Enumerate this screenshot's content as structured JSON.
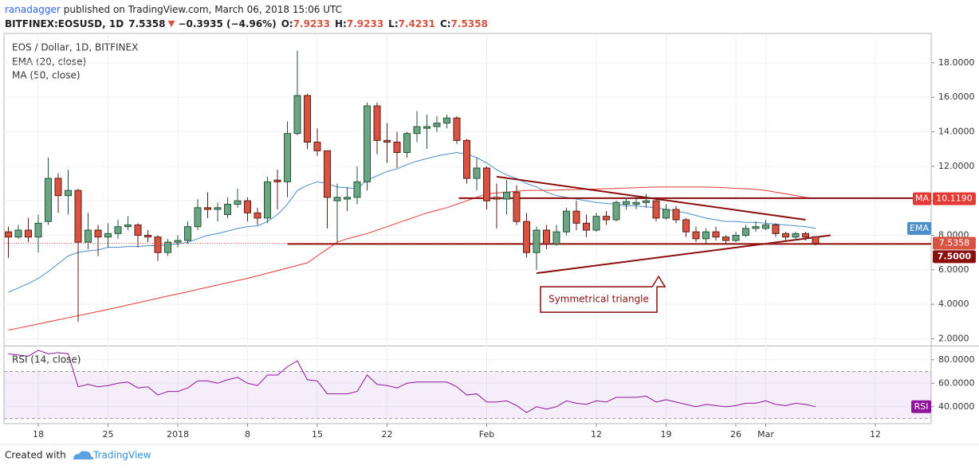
{
  "header": {
    "author": "ranadagger",
    "published": "published on TradingView.com, March 06, 2018 15:06 UTC",
    "symbol": "BITFINEX:EOSUSD, 1D",
    "last": "7.5358",
    "change": "−0.3935 (−4.96%)",
    "ohlc": [
      [
        "O:",
        "7.9233"
      ],
      [
        "H:",
        "7.9233"
      ],
      [
        "L:",
        "7.4231"
      ],
      [
        "C:",
        "7.5358"
      ]
    ]
  },
  "footer": {
    "created": "Created with",
    "brand": "TradingView"
  },
  "chart_data": {
    "type": "candlestick",
    "title": "EOS / Dollar, 1D, BITFINEX",
    "categories": [
      null,
      null,
      null,
      "18",
      null,
      null,
      null,
      null,
      null,
      null,
      "25",
      null,
      null,
      null,
      null,
      null,
      null,
      "2018",
      null,
      null,
      null,
      null,
      null,
      null,
      "8",
      null,
      null,
      null,
      null,
      null,
      null,
      "15",
      null,
      null,
      null,
      null,
      null,
      null,
      "22",
      null,
      null,
      null,
      null,
      null,
      null,
      null,
      null,
      null,
      "Feb",
      null,
      null,
      null,
      null,
      null,
      null,
      null,
      null,
      null,
      null,
      "12",
      null,
      null,
      null,
      null,
      null,
      null,
      "19",
      null,
      null,
      null,
      null,
      null,
      null,
      "26",
      null,
      null,
      "Mar",
      null,
      null,
      null,
      null,
      null,
      null,
      null,
      null,
      null,
      null,
      "12",
      null,
      null,
      null,
      null,
      null
    ],
    "open": [
      8.2,
      7.9,
      8.3,
      7.9,
      8.8,
      11.3,
      10.3,
      10.6,
      7.6,
      8.3,
      7.9,
      8.1,
      8.5,
      8.6,
      8.0,
      7.9,
      7.0,
      7.6,
      7.7,
      8.5,
      9.6,
      9.5,
      9.2,
      9.8,
      10.0,
      9.3,
      9.0,
      11.2,
      11.1,
      13.9,
      16.1,
      13.4,
      12.9,
      10.0,
      10.1,
      10.2,
      11.1,
      15.5,
      13.5,
      13.4,
      12.8,
      13.9,
      14.2,
      14.3,
      14.5,
      14.8,
      13.5,
      11.3,
      11.9,
      10.2,
      10.1,
      10.5,
      8.8,
      7.0,
      8.3,
      7.5,
      8.2,
      9.4,
      8.7,
      8.3,
      9.1,
      8.9,
      9.8,
      9.8,
      9.9,
      10.0,
      9.0,
      9.5,
      8.9,
      8.2,
      7.8,
      8.2,
      7.9,
      7.7,
      8.0,
      8.4,
      8.4,
      8.6,
      8.1,
      7.9,
      8.1,
      7.9233,
      null,
      null,
      null,
      null,
      null,
      null,
      null,
      null,
      null,
      null,
      null
    ],
    "high": [
      8.5,
      8.6,
      9.0,
      9.2,
      12.5,
      11.6,
      11.8,
      10.7,
      9.3,
      8.6,
      8.7,
      8.9,
      9.1,
      8.7,
      8.3,
      8.0,
      7.8,
      8.0,
      8.8,
      10.1,
      10.5,
      9.9,
      10.2,
      10.7,
      10.2,
      9.6,
      11.4,
      11.8,
      14.6,
      18.7,
      16.2,
      14.2,
      12.9,
      11.0,
      10.8,
      12.0,
      15.7,
      15.7,
      14.5,
      14.0,
      14.0,
      15.2,
      15.0,
      14.9,
      15.0,
      14.9,
      13.6,
      12.5,
      12.0,
      11.0,
      11.2,
      10.9,
      9.3,
      8.5,
      8.6,
      8.6,
      9.6,
      10.0,
      9.2,
      9.3,
      9.4,
      10.0,
      10.2,
      10.3,
      10.4,
      10.2,
      9.8,
      9.7,
      9.0,
      8.5,
      8.4,
      8.5,
      8.0,
      8.2,
      8.6,
      8.8,
      8.9,
      8.7,
      8.2,
      8.2,
      8.2,
      7.9233,
      null,
      null,
      null,
      null,
      null,
      null,
      null,
      null,
      null,
      null,
      null
    ],
    "low": [
      6.7,
      7.8,
      7.6,
      7.0,
      8.6,
      9.3,
      9.2,
      3.0,
      7.2,
      6.8,
      7.3,
      7.8,
      8.3,
      7.3,
      7.6,
      6.5,
      6.8,
      7.3,
      7.5,
      8.3,
      9.0,
      8.8,
      9.0,
      9.6,
      8.8,
      8.6,
      8.7,
      9.5,
      10.2,
      13.8,
      13.0,
      12.6,
      8.4,
      7.6,
      9.4,
      9.8,
      10.6,
      12.7,
      12.2,
      11.9,
      12.5,
      13.4,
      13.0,
      14.0,
      14.2,
      13.3,
      11.0,
      10.6,
      9.5,
      8.4,
      9.2,
      8.6,
      6.7,
      6.0,
      7.2,
      7.4,
      8.0,
      8.3,
      7.9,
      8.2,
      8.6,
      8.8,
      9.5,
      9.5,
      9.6,
      8.8,
      8.9,
      8.7,
      7.9,
      7.6,
      7.5,
      7.7,
      7.5,
      7.6,
      7.9,
      8.2,
      8.3,
      7.9,
      7.7,
      7.7,
      7.7,
      7.4231,
      null,
      null,
      null,
      null,
      null,
      null,
      null,
      null,
      null,
      null,
      null
    ],
    "close": [
      7.9,
      8.3,
      7.9,
      8.7,
      11.3,
      10.3,
      10.6,
      7.6,
      8.3,
      7.9,
      8.1,
      8.5,
      8.6,
      8.0,
      7.9,
      7.0,
      7.6,
      7.7,
      8.5,
      9.6,
      9.5,
      9.6,
      9.8,
      10.0,
      9.3,
      9.0,
      11.1,
      11.1,
      13.9,
      16.1,
      13.4,
      12.9,
      10.2,
      10.2,
      10.2,
      11.1,
      15.5,
      13.5,
      13.4,
      12.8,
      13.9,
      14.3,
      14.3,
      14.5,
      14.8,
      13.5,
      11.3,
      11.9,
      10.0,
      10.1,
      10.5,
      8.8,
      7.0,
      8.3,
      7.5,
      8.2,
      9.4,
      8.7,
      8.3,
      9.1,
      8.9,
      9.9,
      9.95,
      9.9,
      10.0,
      9.0,
      9.5,
      8.9,
      8.2,
      7.8,
      8.2,
      7.9,
      7.7,
      8.0,
      8.4,
      8.5,
      8.6,
      8.1,
      7.9,
      8.1,
      7.9,
      7.5358,
      null,
      null,
      null,
      null,
      null,
      null,
      null,
      null,
      null,
      null,
      null
    ],
    "up_color": "#6ba583",
    "up_border": "#225437",
    "down_color": "#d75442",
    "down_border": "#5b1a13",
    "close_label": "7.5358",
    "series": [
      {
        "name": "EMA (20, close)",
        "tag": "EMA",
        "color": "#4a8ecb",
        "values": [
          4.7,
          4.95,
          5.2,
          5.5,
          5.9,
          6.35,
          6.8,
          7.0,
          7.1,
          7.15,
          7.3,
          7.3,
          7.35,
          7.35,
          7.4,
          7.4,
          7.45,
          7.5,
          7.6,
          7.8,
          8.0,
          8.1,
          8.25,
          8.4,
          8.5,
          8.55,
          8.8,
          9.2,
          9.8,
          10.6,
          10.9,
          11.1,
          11.0,
          10.8,
          10.75,
          10.7,
          11.2,
          11.45,
          11.7,
          11.85,
          12.1,
          12.3,
          12.45,
          12.6,
          12.7,
          12.8,
          12.7,
          12.5,
          12.2,
          11.8,
          11.5,
          11.3,
          11.0,
          10.8,
          10.5,
          10.3,
          10.2,
          10.1,
          10.0,
          9.9,
          9.85,
          9.8,
          9.7,
          9.7,
          9.65,
          9.6,
          9.5,
          9.4,
          9.3,
          9.15,
          9.0,
          8.9,
          8.8,
          8.8,
          8.75,
          8.75,
          8.7,
          8.65,
          8.6,
          8.55,
          8.5,
          8.4,
          null,
          null,
          null,
          null,
          null,
          null,
          null,
          null,
          null,
          null,
          null
        ]
      },
      {
        "name": "MA (50, close)",
        "tag": "MA",
        "last_label": "10.1190",
        "color": "#e53935",
        "values": [
          2.5,
          2.62,
          2.74,
          2.86,
          2.98,
          3.1,
          3.22,
          3.34,
          3.46,
          3.58,
          3.7,
          3.83,
          3.96,
          4.09,
          4.22,
          4.35,
          4.48,
          4.6,
          4.73,
          4.86,
          4.99,
          5.12,
          5.25,
          5.38,
          5.5,
          5.65,
          5.8,
          5.95,
          6.1,
          6.25,
          6.4,
          6.8,
          7.2,
          7.6,
          7.8,
          7.95,
          8.1,
          8.3,
          8.5,
          8.7,
          8.9,
          9.1,
          9.3,
          9.45,
          9.6,
          9.8,
          10.0,
          10.2,
          10.4,
          10.45,
          10.5,
          10.55,
          10.6,
          10.6,
          10.6,
          10.62,
          10.64,
          10.65,
          10.67,
          10.68,
          10.7,
          10.72,
          10.74,
          10.76,
          10.78,
          10.8,
          10.8,
          10.8,
          10.8,
          10.8,
          10.8,
          10.78,
          10.76,
          10.72,
          10.7,
          10.66,
          10.6,
          10.5,
          10.4,
          10.3,
          10.2,
          10.119,
          null,
          null,
          null,
          null,
          null,
          null,
          null,
          null,
          null,
          null,
          null
        ]
      }
    ],
    "ylim": [
      1.7,
      19.7
    ],
    "yticks": [
      {
        "value": 2,
        "label": "2.0000"
      },
      {
        "value": 4,
        "label": "4.0000"
      },
      {
        "value": 6,
        "label": "6.0000"
      },
      {
        "value": 8,
        "label": "8.0000"
      },
      {
        "value": 10,
        "label": "10.0000"
      },
      {
        "value": 12,
        "label": "12.0000"
      },
      {
        "value": 14,
        "label": "14.0000"
      },
      {
        "value": 16,
        "label": "16.0000"
      },
      {
        "value": 18,
        "label": "18.0000"
      }
    ],
    "grid": true,
    "hlines": [
      {
        "value": 7.5,
        "label": "7.5000",
        "from": 28
      },
      {
        "value": 10.15,
        "from": 45.2
      }
    ],
    "hline_color": "#8b0d0d",
    "trendlines": [
      {
        "x": [
          49,
          80
        ],
        "y": [
          11.4,
          8.9
        ]
      },
      {
        "x": [
          53,
          82.5
        ],
        "y": [
          5.8,
          8.0
        ]
      }
    ],
    "annotation": "Symmetrical triangle",
    "rsi": {
      "name": "RSI (14, close)",
      "tag": "RSI",
      "color": "#8e1599",
      "band": [
        30,
        70
      ],
      "ylim": [
        27,
        90
      ],
      "yticks": [
        {
          "value": 40,
          "label": "40.0000"
        },
        {
          "value": 60,
          "label": "60.0000"
        },
        {
          "value": 80,
          "label": "80.0000"
        }
      ],
      "values": [
        85,
        84,
        83,
        88,
        85,
        86,
        85,
        57,
        59,
        57,
        58,
        60,
        61,
        56,
        57,
        50,
        53,
        53,
        56,
        62,
        62,
        60,
        63,
        65,
        60,
        58,
        67,
        67,
        74,
        79,
        63,
        62,
        51,
        51,
        51,
        53,
        67,
        59,
        58,
        56,
        60,
        61,
        61,
        61,
        61,
        57,
        50,
        51,
        44,
        44,
        45,
        41,
        35,
        40,
        38,
        40,
        45,
        43,
        42,
        45,
        44,
        48,
        48,
        48,
        49,
        44,
        46,
        44,
        42,
        40,
        42,
        41,
        40,
        41,
        43,
        43,
        45,
        42,
        41,
        43,
        42,
        40,
        null,
        null,
        null,
        null,
        null,
        null,
        null,
        null,
        null,
        null,
        null
      ]
    }
  }
}
